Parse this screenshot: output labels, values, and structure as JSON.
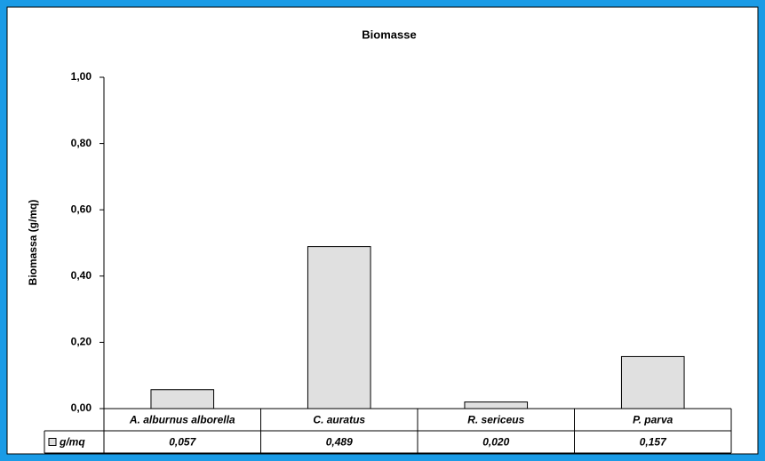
{
  "chart_data": {
    "type": "bar",
    "title": "Biomasse",
    "y_label": "Biomassa (g/mq)",
    "categories": [
      "A. alburnus alborella",
      "C. auratus",
      "R. sericeus",
      "P. parva"
    ],
    "series": [
      {
        "name": "g/mq",
        "color": "#e0e0e0",
        "values": [
          0.057,
          0.489,
          0.02,
          0.157
        ],
        "value_labels": [
          "0,057",
          "0,489",
          "0,020",
          "0,157"
        ]
      }
    ],
    "ylim": [
      0,
      1
    ],
    "yticks": [
      {
        "value": 0,
        "label": "0,00"
      },
      {
        "value": 0.2,
        "label": "0,20"
      },
      {
        "value": 0.4,
        "label": "0,40"
      },
      {
        "value": 0.6,
        "label": "0,60"
      },
      {
        "value": 0.8,
        "label": "0,80"
      },
      {
        "value": 1,
        "label": "1,00"
      }
    ],
    "grid": false
  }
}
